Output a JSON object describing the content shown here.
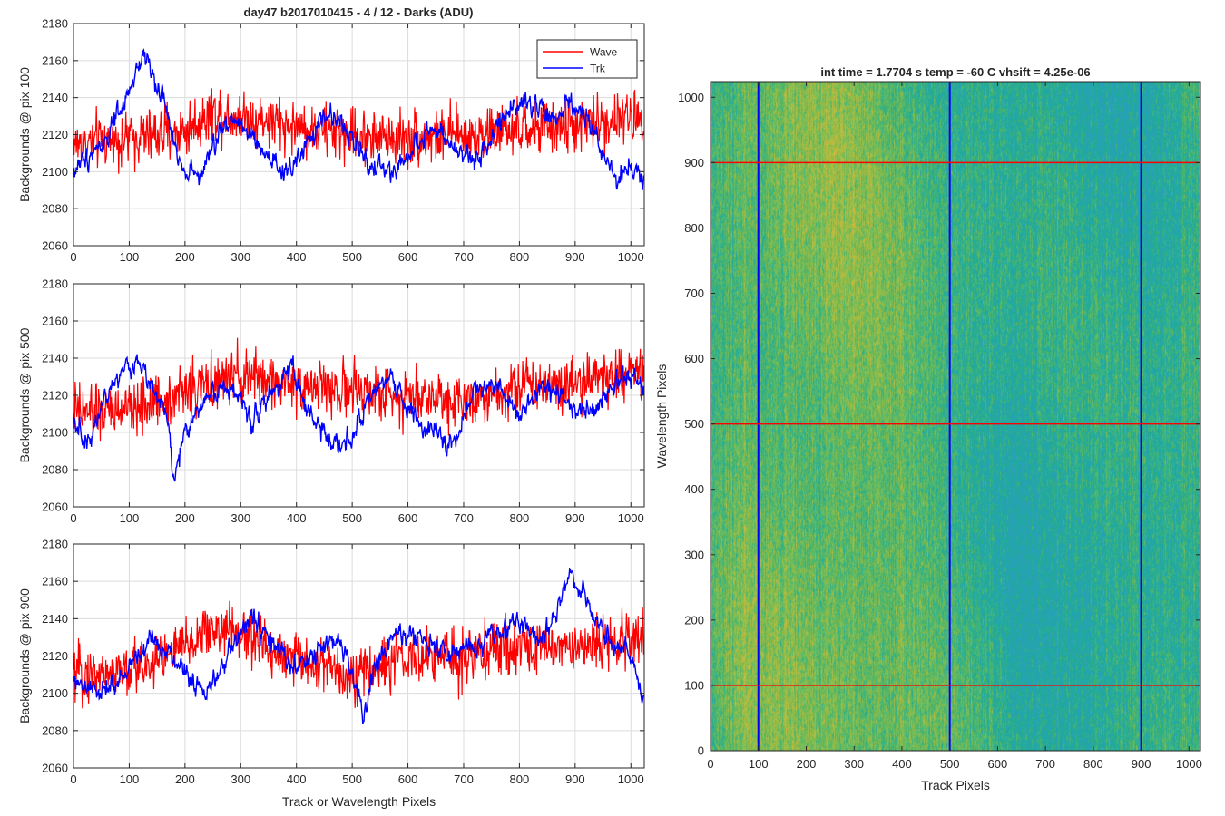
{
  "figure_title": "day47 b2017010415 - 4 / 12 - Darks (ADU)",
  "colors": {
    "wave": "#ff0000",
    "trk": "#0000ff",
    "grid": "#dcdcdc",
    "axes": "#262626",
    "colormap": [
      "#2a9fbc",
      "#1eaa9d",
      "#52b868",
      "#9bbd45",
      "#d6b93b"
    ]
  },
  "chart_data": [
    {
      "type": "line",
      "ylabel": "Backgrounds @ pix 100",
      "xlim": [
        0,
        1024
      ],
      "ylim": [
        2060,
        2180
      ],
      "xticks": [
        0,
        100,
        200,
        300,
        400,
        500,
        600,
        700,
        800,
        900,
        1000
      ],
      "yticks": [
        2060,
        2080,
        2100,
        2120,
        2140,
        2160,
        2180
      ],
      "grid": true,
      "legend": {
        "placement": "top-right",
        "entries": [
          "Wave",
          "Trk"
        ]
      },
      "series": [
        {
          "name": "Wave",
          "color": "#ff0000",
          "noise": 14,
          "x": [
            0,
            100,
            200,
            250,
            300,
            400,
            500,
            600,
            700,
            800,
            900,
            1024
          ],
          "y": [
            2115,
            2118,
            2122,
            2132,
            2130,
            2124,
            2120,
            2118,
            2120,
            2122,
            2125,
            2130
          ]
        },
        {
          "name": "Trk",
          "color": "#0000ff",
          "noise": 5,
          "x": [
            0,
            30,
            60,
            90,
            110,
            125,
            140,
            165,
            180,
            200,
            230,
            260,
            290,
            320,
            350,
            380,
            420,
            450,
            480,
            510,
            540,
            570,
            600,
            640,
            680,
            720,
            760,
            800,
            830,
            860,
            890,
            920,
            950,
            975,
            1000,
            1024
          ],
          "y": [
            2100,
            2110,
            2118,
            2135,
            2150,
            2165,
            2155,
            2135,
            2115,
            2102,
            2098,
            2120,
            2130,
            2118,
            2105,
            2098,
            2115,
            2130,
            2128,
            2112,
            2102,
            2100,
            2108,
            2125,
            2112,
            2105,
            2125,
            2140,
            2135,
            2128,
            2135,
            2130,
            2110,
            2095,
            2105,
            2095
          ]
        }
      ]
    },
    {
      "type": "line",
      "ylabel": "Backgrounds @ pix 500",
      "xlim": [
        0,
        1024
      ],
      "ylim": [
        2060,
        2180
      ],
      "xticks": [
        0,
        100,
        200,
        300,
        400,
        500,
        600,
        700,
        800,
        900,
        1000
      ],
      "yticks": [
        2060,
        2080,
        2100,
        2120,
        2140,
        2160,
        2180
      ],
      "grid": true,
      "series": [
        {
          "name": "Wave",
          "color": "#ff0000",
          "noise": 14,
          "x": [
            0,
            100,
            200,
            300,
            400,
            500,
            600,
            700,
            800,
            900,
            1024
          ],
          "y": [
            2110,
            2112,
            2122,
            2130,
            2126,
            2122,
            2120,
            2118,
            2125,
            2128,
            2132
          ]
        },
        {
          "name": "Trk",
          "color": "#0000ff",
          "noise": 5,
          "x": [
            0,
            20,
            50,
            80,
            110,
            140,
            165,
            180,
            200,
            240,
            280,
            320,
            360,
            390,
            420,
            460,
            500,
            540,
            570,
            600,
            640,
            680,
            720,
            760,
            800,
            840,
            880,
            920,
            960,
            1000,
            1024
          ],
          "y": [
            2110,
            2092,
            2115,
            2130,
            2138,
            2128,
            2112,
            2075,
            2100,
            2120,
            2125,
            2108,
            2122,
            2138,
            2110,
            2095,
            2098,
            2120,
            2130,
            2112,
            2100,
            2094,
            2122,
            2128,
            2110,
            2125,
            2118,
            2110,
            2122,
            2132,
            2125
          ]
        }
      ]
    },
    {
      "type": "line",
      "ylabel": "Backgrounds @ pix 900",
      "xlabel": "Track or Wavelength Pixels",
      "xlim": [
        0,
        1024
      ],
      "ylim": [
        2060,
        2180
      ],
      "xticks": [
        0,
        100,
        200,
        300,
        400,
        500,
        600,
        700,
        800,
        900,
        1000
      ],
      "yticks": [
        2060,
        2080,
        2100,
        2120,
        2140,
        2160,
        2180
      ],
      "grid": true,
      "series": [
        {
          "name": "Wave",
          "color": "#ff0000",
          "noise": 14,
          "x": [
            0,
            100,
            200,
            250,
            300,
            400,
            500,
            600,
            700,
            800,
            900,
            1024
          ],
          "y": [
            2110,
            2112,
            2125,
            2135,
            2132,
            2118,
            2110,
            2118,
            2120,
            2125,
            2125,
            2130
          ]
        },
        {
          "name": "Trk",
          "color": "#0000ff",
          "noise": 5,
          "x": [
            0,
            40,
            80,
            110,
            140,
            170,
            200,
            230,
            260,
            290,
            320,
            360,
            400,
            440,
            480,
            510,
            520,
            540,
            570,
            600,
            640,
            680,
            720,
            760,
            800,
            840,
            870,
            890,
            920,
            960,
            1000,
            1024
          ],
          "y": [
            2105,
            2100,
            2105,
            2118,
            2130,
            2122,
            2112,
            2102,
            2108,
            2128,
            2140,
            2125,
            2112,
            2122,
            2130,
            2100,
            2085,
            2115,
            2128,
            2132,
            2128,
            2120,
            2125,
            2132,
            2138,
            2128,
            2150,
            2165,
            2150,
            2128,
            2120,
            2095
          ]
        }
      ]
    },
    {
      "type": "heatmap",
      "title": "int time = 1.7704 s    temp = -60 C    vhsift = 4.25e-06",
      "xlabel": "Track Pixels",
      "ylabel": "Wavelength Pixels",
      "xlim": [
        0,
        1024
      ],
      "ylim": [
        0,
        1024
      ],
      "xticks": [
        0,
        100,
        200,
        300,
        400,
        500,
        600,
        700,
        800,
        900,
        1000
      ],
      "yticks": [
        0,
        100,
        200,
        300,
        400,
        500,
        600,
        700,
        800,
        900,
        1000
      ],
      "vertical_markers": {
        "color": "#0000ff",
        "x": [
          100,
          500,
          900
        ]
      },
      "horizontal_markers": {
        "color": "#ff0000",
        "y": [
          100,
          500,
          900
        ]
      }
    }
  ]
}
